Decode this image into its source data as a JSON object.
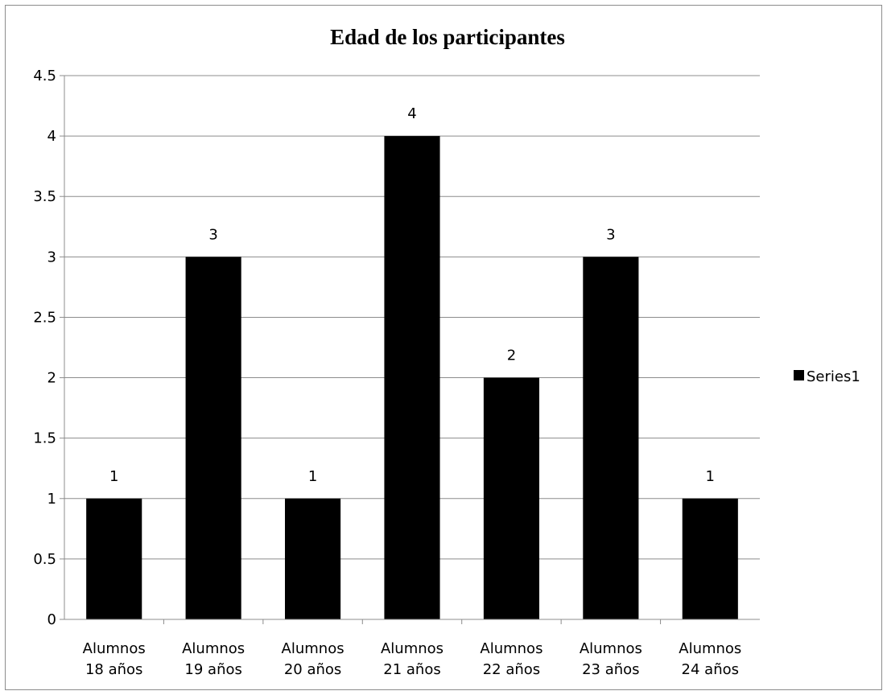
{
  "chart_data": {
    "type": "bar",
    "title": "Edad de los participantes",
    "xlabel": "",
    "ylabel": "",
    "categories": [
      [
        "Alumnos",
        "18 años"
      ],
      [
        "Alumnos",
        "19 años"
      ],
      [
        "Alumnos",
        "20 años"
      ],
      [
        "Alumnos",
        "21 años"
      ],
      [
        "Alumnos",
        "22 años"
      ],
      [
        "Alumnos",
        "23 años"
      ],
      [
        "Alumnos",
        "24 años"
      ]
    ],
    "series": [
      {
        "name": "Series1",
        "values": [
          1,
          3,
          1,
          4,
          2,
          3,
          1
        ],
        "color": "#000000"
      }
    ],
    "ylim": [
      0,
      4.5
    ],
    "yticks": [
      "0",
      "0.5",
      "1",
      "1.5",
      "2",
      "2.5",
      "3",
      "3.5",
      "4",
      "4.5"
    ],
    "grid": true,
    "data_labels": true,
    "legend": {
      "placement": "right"
    }
  }
}
